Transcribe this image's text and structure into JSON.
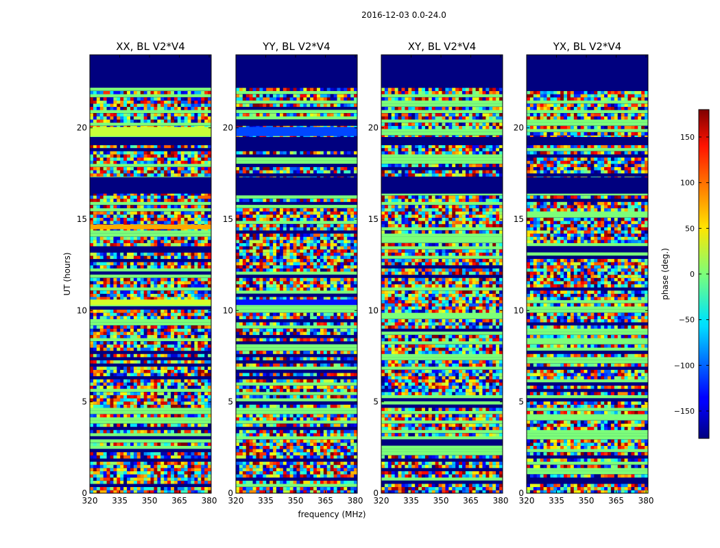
{
  "chart_data": {
    "type": "heatmap",
    "suptitle": "2016-12-03 0.0-24.0",
    "xlabel": "frequency (MHz)",
    "ylabel": "UT (hours)",
    "xlim": [
      320,
      381
    ],
    "ylim": [
      0,
      24
    ],
    "xticks": [
      320,
      335,
      350,
      365,
      380
    ],
    "yticks": [
      0,
      5,
      10,
      15,
      20
    ],
    "panels": [
      {
        "title": "XX, BL V2*V4",
        "bands": [
          {
            "y": [
              19.55,
              20.05
            ],
            "phase": 25
          },
          {
            "y": [
              14.45,
              14.7
            ],
            "phase": 75
          },
          {
            "y": [
              10.3,
              10.6
            ],
            "phase": 30
          }
        ]
      },
      {
        "title": "YY, BL V2*V4",
        "bands": [
          {
            "y": [
              19.55,
              20.05
            ],
            "phase": -110
          },
          {
            "y": [
              10.3,
              10.6
            ],
            "phase": -130
          }
        ]
      },
      {
        "title": "XY, BL V2*V4",
        "bands": []
      },
      {
        "title": "YX, BL V2*V4",
        "bands": []
      }
    ],
    "flagged_rows": [
      [
        22.2,
        24.0
      ],
      [
        17.3,
        16.4
      ],
      [
        19.05,
        19.5
      ]
    ],
    "colorbar": {
      "label": "phase (deg.)",
      "range": [
        -180,
        180
      ],
      "ticks": [
        150,
        100,
        50,
        0,
        -50,
        -100,
        -150
      ],
      "tick_labels": [
        "150",
        "100",
        "50",
        "0",
        "−50",
        "−100",
        "−150"
      ],
      "colormap": "jet"
    }
  }
}
